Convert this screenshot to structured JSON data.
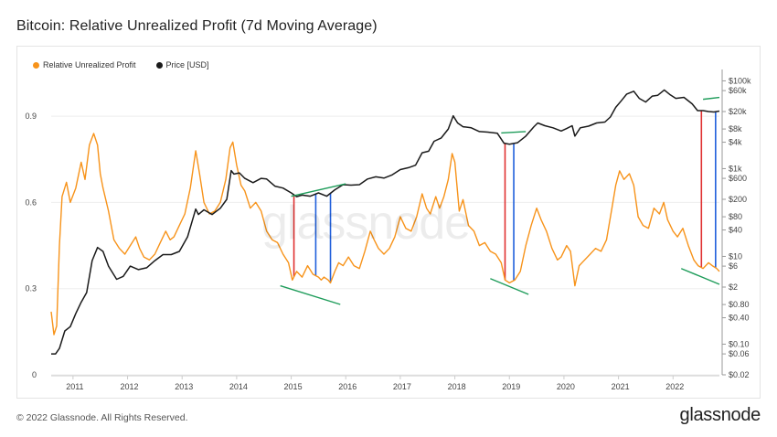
{
  "header": {
    "title": "Bitcoin: Relative Unrealized Profit (7d Moving Average)"
  },
  "footer": {
    "copyright": "© 2022 Glassnode. All Rights Reserved.",
    "brand": "glassnode"
  },
  "watermark": "glassnode",
  "colors": {
    "rup": "#f7931a",
    "price": "#1a1a1a",
    "trend_green": "#1e9c5a",
    "marker_red": "#e03131",
    "marker_blue": "#1f5fdb",
    "grid": "#eeeeee"
  },
  "chart_data": {
    "type": "line",
    "legend": [
      "Relative Unrealized Profit",
      "Price [USD]"
    ],
    "legend_position": "top-left",
    "grid": true,
    "x_axis": {
      "range": [
        2010.6,
        2022.85
      ],
      "ticks": [
        "2011",
        "2012",
        "2013",
        "2014",
        "2015",
        "2016",
        "2017",
        "2018",
        "2019",
        "2020",
        "2021",
        "2022"
      ]
    },
    "y_left": {
      "range": [
        0,
        1.05
      ],
      "ticks": [
        "0",
        "0.3",
        "0.6",
        "0.9"
      ]
    },
    "y_right": {
      "scale": "log",
      "range": [
        0.02,
        150000
      ],
      "ticks": [
        {
          "v": 100000,
          "label": "$100k"
        },
        {
          "v": 60000,
          "label": "$60k"
        },
        {
          "v": 20000,
          "label": "$20k"
        },
        {
          "v": 8000,
          "label": "$8k"
        },
        {
          "v": 4000,
          "label": "$4k"
        },
        {
          "v": 1000,
          "label": "$1k"
        },
        {
          "v": 600,
          "label": "$600"
        },
        {
          "v": 200,
          "label": "$200"
        },
        {
          "v": 80,
          "label": "$80"
        },
        {
          "v": 40,
          "label": "$40"
        },
        {
          "v": 10,
          "label": "$10"
        },
        {
          "v": 6,
          "label": "$6"
        },
        {
          "v": 2,
          "label": "$2"
        },
        {
          "v": 0.8,
          "label": "$0.80"
        },
        {
          "v": 0.4,
          "label": "$0.40"
        },
        {
          "v": 0.1,
          "label": "$0.10"
        },
        {
          "v": 0.06,
          "label": "$0.06"
        },
        {
          "v": 0.02,
          "label": "$0.02"
        }
      ]
    },
    "series": [
      {
        "name": "Relative Unrealized Profit",
        "axis": "left",
        "points": [
          [
            2010.6,
            0.22
          ],
          [
            2010.65,
            0.14
          ],
          [
            2010.7,
            0.17
          ],
          [
            2010.75,
            0.45
          ],
          [
            2010.8,
            0.62
          ],
          [
            2010.88,
            0.67
          ],
          [
            2010.95,
            0.6
          ],
          [
            2011.05,
            0.65
          ],
          [
            2011.15,
            0.74
          ],
          [
            2011.22,
            0.68
          ],
          [
            2011.3,
            0.8
          ],
          [
            2011.38,
            0.84
          ],
          [
            2011.45,
            0.8
          ],
          [
            2011.5,
            0.7
          ],
          [
            2011.55,
            0.65
          ],
          [
            2011.65,
            0.57
          ],
          [
            2011.75,
            0.47
          ],
          [
            2011.85,
            0.44
          ],
          [
            2011.95,
            0.42
          ],
          [
            2012.05,
            0.45
          ],
          [
            2012.15,
            0.48
          ],
          [
            2012.22,
            0.44
          ],
          [
            2012.3,
            0.41
          ],
          [
            2012.4,
            0.4
          ],
          [
            2012.5,
            0.42
          ],
          [
            2012.6,
            0.46
          ],
          [
            2012.7,
            0.5
          ],
          [
            2012.78,
            0.47
          ],
          [
            2012.85,
            0.48
          ],
          [
            2012.95,
            0.52
          ],
          [
            2013.05,
            0.56
          ],
          [
            2013.15,
            0.65
          ],
          [
            2013.25,
            0.78
          ],
          [
            2013.32,
            0.7
          ],
          [
            2013.4,
            0.6
          ],
          [
            2013.5,
            0.56
          ],
          [
            2013.6,
            0.57
          ],
          [
            2013.7,
            0.6
          ],
          [
            2013.8,
            0.68
          ],
          [
            2013.88,
            0.79
          ],
          [
            2013.93,
            0.81
          ],
          [
            2014.0,
            0.73
          ],
          [
            2014.08,
            0.66
          ],
          [
            2014.15,
            0.64
          ],
          [
            2014.25,
            0.58
          ],
          [
            2014.35,
            0.6
          ],
          [
            2014.45,
            0.57
          ],
          [
            2014.55,
            0.5
          ],
          [
            2014.65,
            0.47
          ],
          [
            2014.75,
            0.46
          ],
          [
            2014.85,
            0.42
          ],
          [
            2014.95,
            0.39
          ],
          [
            2015.02,
            0.33
          ],
          [
            2015.1,
            0.36
          ],
          [
            2015.2,
            0.34
          ],
          [
            2015.3,
            0.38
          ],
          [
            2015.4,
            0.35
          ],
          [
            2015.5,
            0.34
          ],
          [
            2015.55,
            0.33
          ],
          [
            2015.6,
            0.34
          ],
          [
            2015.68,
            0.33
          ],
          [
            2015.72,
            0.32
          ],
          [
            2015.8,
            0.36
          ],
          [
            2015.87,
            0.39
          ],
          [
            2015.95,
            0.38
          ],
          [
            2016.05,
            0.41
          ],
          [
            2016.15,
            0.38
          ],
          [
            2016.25,
            0.37
          ],
          [
            2016.35,
            0.43
          ],
          [
            2016.45,
            0.5
          ],
          [
            2016.52,
            0.47
          ],
          [
            2016.6,
            0.44
          ],
          [
            2016.7,
            0.42
          ],
          [
            2016.8,
            0.44
          ],
          [
            2016.9,
            0.48
          ],
          [
            2017.0,
            0.55
          ],
          [
            2017.1,
            0.51
          ],
          [
            2017.2,
            0.5
          ],
          [
            2017.3,
            0.55
          ],
          [
            2017.4,
            0.63
          ],
          [
            2017.48,
            0.58
          ],
          [
            2017.55,
            0.56
          ],
          [
            2017.65,
            0.62
          ],
          [
            2017.72,
            0.58
          ],
          [
            2017.8,
            0.62
          ],
          [
            2017.88,
            0.68
          ],
          [
            2017.95,
            0.77
          ],
          [
            2018.0,
            0.74
          ],
          [
            2018.08,
            0.57
          ],
          [
            2018.15,
            0.61
          ],
          [
            2018.25,
            0.52
          ],
          [
            2018.35,
            0.5
          ],
          [
            2018.45,
            0.45
          ],
          [
            2018.55,
            0.46
          ],
          [
            2018.65,
            0.43
          ],
          [
            2018.75,
            0.42
          ],
          [
            2018.85,
            0.39
          ],
          [
            2018.92,
            0.33
          ],
          [
            2019.0,
            0.32
          ],
          [
            2019.1,
            0.33
          ],
          [
            2019.2,
            0.36
          ],
          [
            2019.3,
            0.45
          ],
          [
            2019.4,
            0.52
          ],
          [
            2019.5,
            0.58
          ],
          [
            2019.58,
            0.54
          ],
          [
            2019.68,
            0.5
          ],
          [
            2019.78,
            0.44
          ],
          [
            2019.88,
            0.4
          ],
          [
            2019.95,
            0.41
          ],
          [
            2020.05,
            0.45
          ],
          [
            2020.12,
            0.43
          ],
          [
            2020.2,
            0.31
          ],
          [
            2020.28,
            0.38
          ],
          [
            2020.38,
            0.4
          ],
          [
            2020.48,
            0.42
          ],
          [
            2020.58,
            0.44
          ],
          [
            2020.68,
            0.43
          ],
          [
            2020.78,
            0.47
          ],
          [
            2020.88,
            0.58
          ],
          [
            2020.95,
            0.66
          ],
          [
            2021.02,
            0.71
          ],
          [
            2021.1,
            0.68
          ],
          [
            2021.2,
            0.7
          ],
          [
            2021.28,
            0.66
          ],
          [
            2021.36,
            0.55
          ],
          [
            2021.45,
            0.52
          ],
          [
            2021.55,
            0.51
          ],
          [
            2021.65,
            0.58
          ],
          [
            2021.75,
            0.56
          ],
          [
            2021.83,
            0.6
          ],
          [
            2021.9,
            0.54
          ],
          [
            2022.0,
            0.5
          ],
          [
            2022.08,
            0.48
          ],
          [
            2022.18,
            0.51
          ],
          [
            2022.28,
            0.45
          ],
          [
            2022.38,
            0.4
          ],
          [
            2022.46,
            0.38
          ],
          [
            2022.55,
            0.37
          ],
          [
            2022.65,
            0.39
          ],
          [
            2022.72,
            0.38
          ],
          [
            2022.8,
            0.37
          ],
          [
            2022.85,
            0.36
          ]
        ]
      },
      {
        "name": "Price [USD]",
        "axis": "right",
        "points": [
          [
            2010.6,
            0.06
          ],
          [
            2010.68,
            0.06
          ],
          [
            2010.75,
            0.08
          ],
          [
            2010.85,
            0.2
          ],
          [
            2010.95,
            0.25
          ],
          [
            2011.05,
            0.5
          ],
          [
            2011.15,
            0.9
          ],
          [
            2011.25,
            1.5
          ],
          [
            2011.35,
            8
          ],
          [
            2011.45,
            16
          ],
          [
            2011.55,
            13
          ],
          [
            2011.65,
            6
          ],
          [
            2011.8,
            3
          ],
          [
            2011.92,
            3.5
          ],
          [
            2012.05,
            6
          ],
          [
            2012.2,
            5
          ],
          [
            2012.35,
            5.5
          ],
          [
            2012.5,
            8
          ],
          [
            2012.65,
            11
          ],
          [
            2012.8,
            11
          ],
          [
            2012.95,
            13
          ],
          [
            2013.1,
            28
          ],
          [
            2013.25,
            120
          ],
          [
            2013.3,
            90
          ],
          [
            2013.4,
            115
          ],
          [
            2013.55,
            90
          ],
          [
            2013.7,
            125
          ],
          [
            2013.82,
            200
          ],
          [
            2013.9,
            900
          ],
          [
            2013.95,
            750
          ],
          [
            2014.05,
            800
          ],
          [
            2014.15,
            600
          ],
          [
            2014.3,
            480
          ],
          [
            2014.45,
            600
          ],
          [
            2014.55,
            580
          ],
          [
            2014.7,
            400
          ],
          [
            2014.85,
            360
          ],
          [
            2015.0,
            280
          ],
          [
            2015.1,
            230
          ],
          [
            2015.2,
            250
          ],
          [
            2015.35,
            235
          ],
          [
            2015.5,
            280
          ],
          [
            2015.65,
            235
          ],
          [
            2015.8,
            330
          ],
          [
            2015.95,
            430
          ],
          [
            2016.1,
            420
          ],
          [
            2016.25,
            430
          ],
          [
            2016.4,
            580
          ],
          [
            2016.55,
            650
          ],
          [
            2016.7,
            610
          ],
          [
            2016.85,
            720
          ],
          [
            2017.0,
            950
          ],
          [
            2017.15,
            1050
          ],
          [
            2017.28,
            1200
          ],
          [
            2017.4,
            2300
          ],
          [
            2017.52,
            2500
          ],
          [
            2017.62,
            4200
          ],
          [
            2017.75,
            5000
          ],
          [
            2017.88,
            8000
          ],
          [
            2017.97,
            16000
          ],
          [
            2018.05,
            11000
          ],
          [
            2018.15,
            9000
          ],
          [
            2018.3,
            8500
          ],
          [
            2018.45,
            7000
          ],
          [
            2018.6,
            6800
          ],
          [
            2018.78,
            6400
          ],
          [
            2018.9,
            3800
          ],
          [
            2019.0,
            3600
          ],
          [
            2019.15,
            3900
          ],
          [
            2019.3,
            5500
          ],
          [
            2019.45,
            9000
          ],
          [
            2019.52,
            11000
          ],
          [
            2019.65,
            9500
          ],
          [
            2019.8,
            8500
          ],
          [
            2019.95,
            7200
          ],
          [
            2020.05,
            8200
          ],
          [
            2020.15,
            9500
          ],
          [
            2020.2,
            5500
          ],
          [
            2020.3,
            8500
          ],
          [
            2020.45,
            9300
          ],
          [
            2020.6,
            11000
          ],
          [
            2020.75,
            11500
          ],
          [
            2020.85,
            15000
          ],
          [
            2020.95,
            25000
          ],
          [
            2021.05,
            35000
          ],
          [
            2021.15,
            50000
          ],
          [
            2021.28,
            58000
          ],
          [
            2021.38,
            40000
          ],
          [
            2021.5,
            33000
          ],
          [
            2021.62,
            45000
          ],
          [
            2021.72,
            47000
          ],
          [
            2021.84,
            62000
          ],
          [
            2021.95,
            48000
          ],
          [
            2022.05,
            40000
          ],
          [
            2022.2,
            42000
          ],
          [
            2022.35,
            30000
          ],
          [
            2022.45,
            21000
          ],
          [
            2022.55,
            21000
          ],
          [
            2022.65,
            20000
          ],
          [
            2022.75,
            19500
          ],
          [
            2022.85,
            20500
          ]
        ]
      }
    ],
    "annotations": {
      "green_trendlines": [
        {
          "axis": "right",
          "from": [
            2015.0,
            235
          ],
          "to": [
            2016.0,
            450
          ]
        },
        {
          "axis": "left",
          "from": [
            2014.8,
            0.31
          ],
          "to": [
            2015.9,
            0.245
          ]
        },
        {
          "axis": "right",
          "from": [
            2018.85,
            6500
          ],
          "to": [
            2019.3,
            7000
          ]
        },
        {
          "axis": "left",
          "from": [
            2018.65,
            0.335
          ],
          "to": [
            2019.35,
            0.28
          ]
        },
        {
          "axis": "right",
          "from": [
            2022.55,
            38000
          ],
          "to": [
            2022.85,
            42000
          ]
        },
        {
          "axis": "left",
          "from": [
            2022.15,
            0.37
          ],
          "to": [
            2022.85,
            0.315
          ]
        }
      ],
      "red_verticals": [
        2015.05,
        2018.92,
        2022.52
      ],
      "blue_verticals": [
        2015.45,
        2015.72,
        2019.08,
        2022.78
      ]
    }
  }
}
